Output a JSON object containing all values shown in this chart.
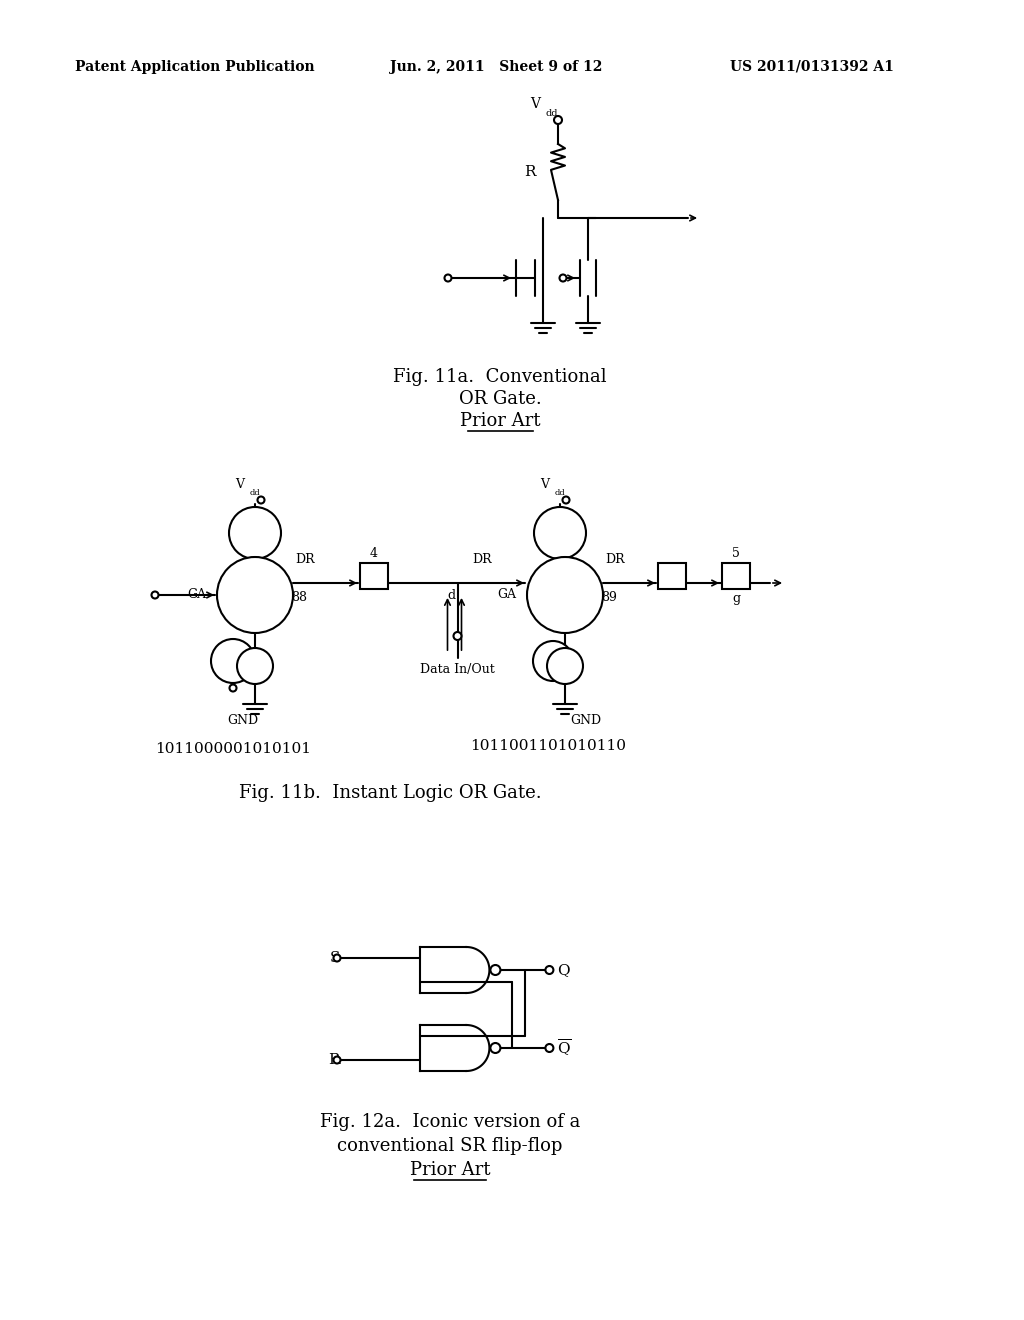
{
  "bg_color": "#ffffff",
  "header_left": "Patent Application Publication",
  "header_mid": "Jun. 2, 2011   Sheet 9 of 12",
  "header_right": "US 2011/0131392 A1",
  "fig11a_caption_line1": "Fig. 11a.  Conventional",
  "fig11a_caption_line2": "OR Gate.",
  "fig11a_caption_line3": "Prior Art",
  "fig11b_caption": "Fig. 11b.  Instant Logic OR Gate.",
  "fig12a_caption_line1": "Fig. 12a.  Iconic version of a",
  "fig12a_caption_line2": "conventional SR flip-flop",
  "fig12a_caption_line3": "Prior Art",
  "binary1": "1011000001010101",
  "binary2": "1011001101010110"
}
